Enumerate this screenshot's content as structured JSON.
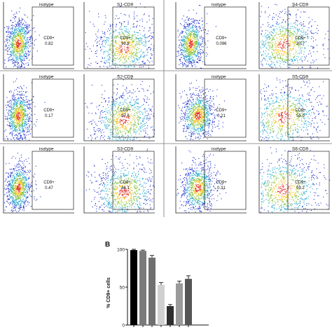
{
  "flow_panels": [
    {
      "id": "p-iso-1",
      "title": "isotype",
      "gate_label": "CD9+",
      "gate_value": "0.82",
      "spread": 0.15
    },
    {
      "id": "p-s1",
      "title": "S1-CD9",
      "gate_label": "CD9+",
      "gate_value": "98.9",
      "spread": 0.5
    },
    {
      "id": "p-iso-4",
      "title": "isotype",
      "gate_label": "CD9+",
      "gate_value": "0.096",
      "spread": 0.15
    },
    {
      "id": "p-s4",
      "title": "S4-CD9",
      "gate_label": "CD9+",
      "gate_value": "30.7",
      "spread": 0.6
    },
    {
      "id": "p-iso-2",
      "title": "isotype",
      "gate_label": "CD9+",
      "gate_value": "0.17",
      "spread": 0.15
    },
    {
      "id": "p-s2",
      "title": "S2-CD9",
      "gate_label": "CD9+",
      "gate_value": "97.6",
      "spread": 0.5
    },
    {
      "id": "p-iso-5",
      "title": "isotype",
      "gate_label": "CD9+",
      "gate_value": "0.21",
      "spread": 0.3
    },
    {
      "id": "p-s5",
      "title": "S5-CD9",
      "gate_label": "CD9+",
      "gate_value": "55.0",
      "spread": 0.75
    },
    {
      "id": "p-iso-3",
      "title": "isotype",
      "gate_label": "CD9+",
      "gate_value": "0.47",
      "spread": 0.15
    },
    {
      "id": "p-s3",
      "title": "S3-CD9",
      "gate_label": "CD9+",
      "gate_value": "46.1",
      "spread": 0.5
    },
    {
      "id": "p-iso-6",
      "title": "isotype",
      "gate_label": "CD9+",
      "gate_value": "0.31",
      "spread": 0.3
    },
    {
      "id": "p-s6",
      "title": "S6-CD9",
      "gate_label": "CD9+",
      "gate_value": "59.2",
      "spread": 0.75
    }
  ],
  "chart_data": {
    "type": "bar",
    "panel_label": "B",
    "ylabel": "% CD9+ cells",
    "xlabel": "",
    "title": "",
    "ylim": [
      0,
      100
    ],
    "yticks": [
      "0",
      "50",
      "100"
    ],
    "values": [
      99,
      98,
      89,
      53,
      25,
      55,
      61
    ],
    "errors": [
      1,
      1,
      3,
      3,
      2,
      3,
      4
    ],
    "colors": [
      "#000000",
      "#7a7a7a",
      "#6f6f6f",
      "#d0d0d0",
      "#2e2e2e",
      "#9a9a9a",
      "#555555"
    ]
  }
}
